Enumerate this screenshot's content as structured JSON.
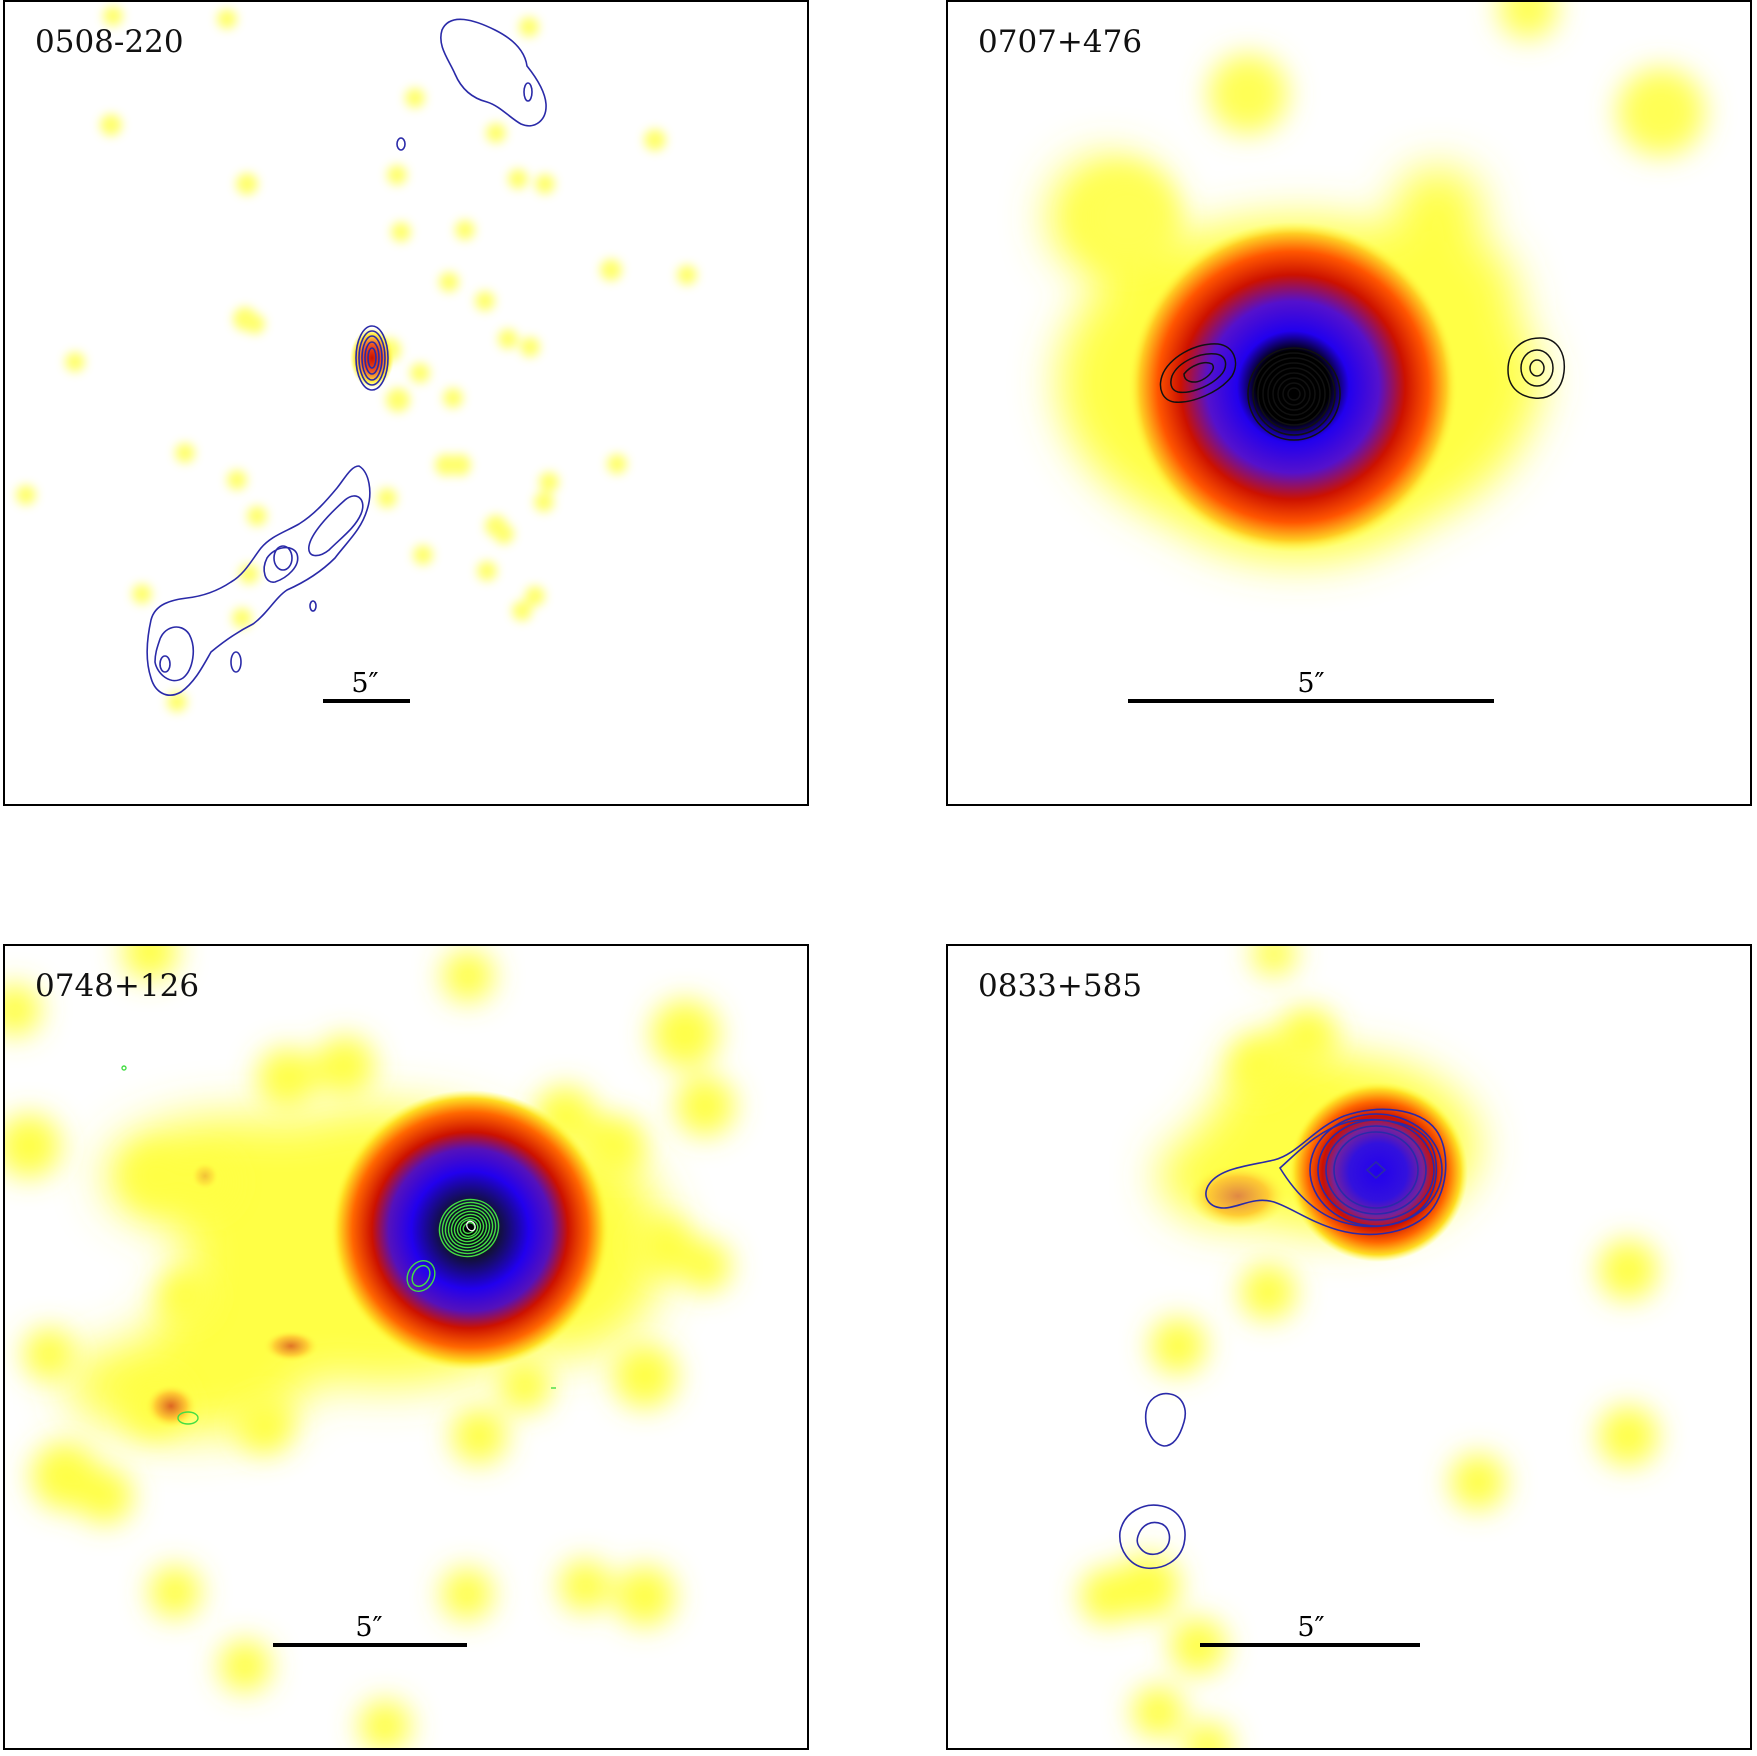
{
  "figure": {
    "panels": [
      {
        "id": "p1",
        "label": "0508-220",
        "scale_label": "5″",
        "contour_color": "#2a2aa8"
      },
      {
        "id": "p2",
        "label": "0707+476",
        "scale_label": "5″",
        "contour_color": "#111111"
      },
      {
        "id": "p3",
        "label": "0748+126",
        "scale_label": "5″",
        "contour_color": "#44dd44"
      },
      {
        "id": "p4",
        "label": "0833+585",
        "scale_label": "5″",
        "contour_color": "#2a2aa8"
      }
    ],
    "colors": {
      "yellow": "#ffff33",
      "red": "#dd2200",
      "blue": "#2200ee",
      "black": "#000000"
    }
  }
}
